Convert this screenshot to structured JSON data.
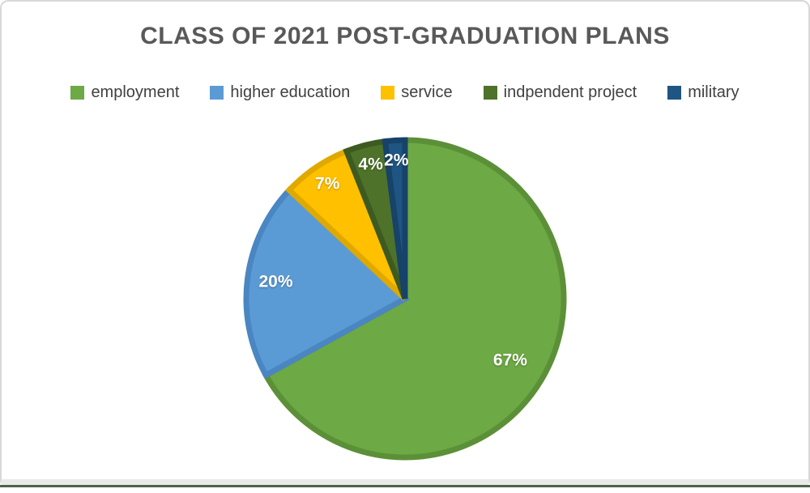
{
  "chart_data": {
    "type": "pie",
    "title": "CLASS OF 2021 POST-GRADUATION PLANS",
    "legend_position": "top",
    "start_angle_deg": 0,
    "direction": "clockwise",
    "data_label_color": "#FFFFFF",
    "title_color": "#595959",
    "legend_text_color": "#404040",
    "slices": [
      {
        "label": "employment",
        "value": 67,
        "display": "67%",
        "color": "#6DA944",
        "border_color": "#5C9038"
      },
      {
        "label": "higher education",
        "value": 20,
        "display": "20%",
        "color": "#5B9BD5",
        "border_color": "#4A86C2"
      },
      {
        "label": "service",
        "value": 7,
        "display": "7%",
        "color": "#FFC000",
        "border_color": "#E0A900"
      },
      {
        "label": "indpendent project",
        "value": 4,
        "display": "4%",
        "color": "#4E7229",
        "border_color": "#3D5A20"
      },
      {
        "label": "military",
        "value": 2,
        "display": "2%",
        "color": "#1F5582",
        "border_color": "#174269"
      }
    ]
  }
}
